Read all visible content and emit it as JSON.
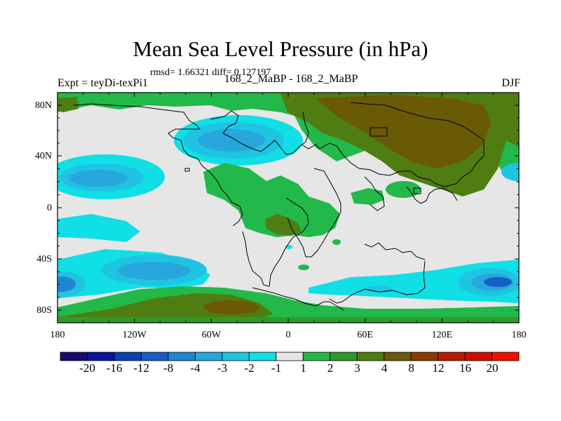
{
  "chart_data": {
    "type": "heatmap",
    "title": "Mean Sea Level Pressure (in hPa)",
    "stats_text": "rmsd= 1.66321 diff= 0.127197",
    "left_label": "Expt = teyDi-texPi1",
    "center_label": "168_2_MaBP - 168_2_MaBP",
    "right_label": "DJF",
    "x_ticks": [
      "180",
      "120W",
      "60W",
      "0",
      "60E",
      "120E",
      "180"
    ],
    "y_ticks": [
      "80N",
      "40N",
      "0",
      "40S",
      "80S"
    ],
    "colorbar": {
      "labels": [
        "-20",
        "-16",
        "-12",
        "-8",
        "-4",
        "-3",
        "-2",
        "-1",
        "1",
        "2",
        "3",
        "4",
        "8",
        "12",
        "16",
        "20"
      ],
      "colors": [
        "#1a0a6e",
        "#08149a",
        "#0e3fb0",
        "#155fc4",
        "#1f86d4",
        "#27a7dd",
        "#20c4e3",
        "#10dfe6",
        "#e6e6e6",
        "#22b84a",
        "#2f9a2a",
        "#4f7d12",
        "#6a5a06",
        "#8c3a04",
        "#b51c02",
        "#d00d00",
        "#f01000"
      ]
    }
  }
}
